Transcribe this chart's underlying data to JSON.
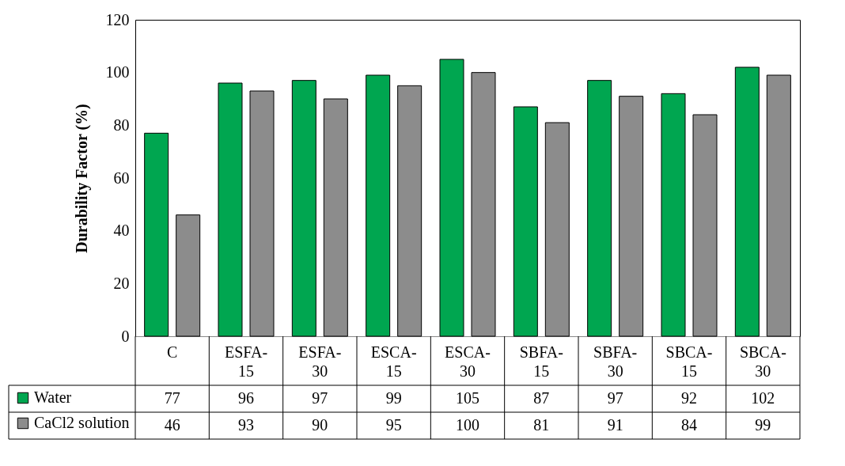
{
  "chart_data": {
    "type": "bar",
    "ylabel": "Durability Factor (%)",
    "categories": [
      "C",
      "ESFA-15",
      "ESFA-30",
      "ESCA-15",
      "ESCA-30",
      "SBFA-15",
      "SBFA-30",
      "SBCA-15",
      "SBCA-30"
    ],
    "series": [
      {
        "name": "Water",
        "color": "#00a650",
        "values": [
          77,
          96,
          97,
          99,
          105,
          87,
          97,
          92,
          102
        ]
      },
      {
        "name": "CaCl2 solution",
        "color": "#8c8c8c",
        "values": [
          46,
          93,
          90,
          95,
          100,
          81,
          91,
          84,
          99
        ]
      }
    ],
    "ylim": [
      0,
      120
    ],
    "yticks": [
      0,
      20,
      40,
      60,
      80,
      100,
      120
    ],
    "grid": false,
    "legend": "bottom",
    "data_labels": true
  }
}
